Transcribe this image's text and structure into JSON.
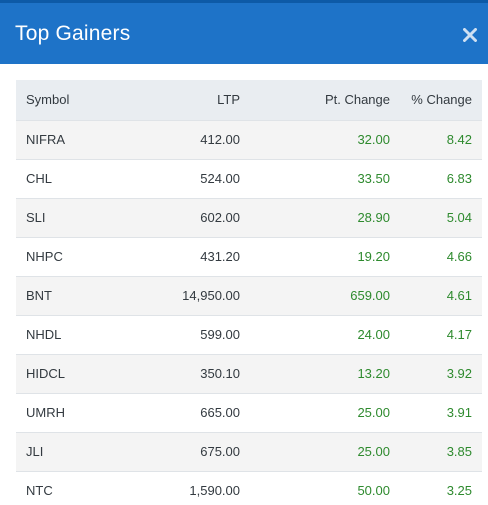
{
  "modal": {
    "title": "Top Gainers",
    "close_icon": "close-icon",
    "header_color": "#1e73c8",
    "positive_color": "#2e8a2e"
  },
  "table": {
    "headers": {
      "symbol": "Symbol",
      "ltp": "LTP",
      "pt_change": "Pt. Change",
      "pct_change": "% Change"
    },
    "rows": [
      {
        "symbol": "NIFRA",
        "ltp": "412.00",
        "pt_change": "32.00",
        "pct_change": "8.42"
      },
      {
        "symbol": "CHL",
        "ltp": "524.00",
        "pt_change": "33.50",
        "pct_change": "6.83"
      },
      {
        "symbol": "SLI",
        "ltp": "602.00",
        "pt_change": "28.90",
        "pct_change": "5.04"
      },
      {
        "symbol": "NHPC",
        "ltp": "431.20",
        "pt_change": "19.20",
        "pct_change": "4.66"
      },
      {
        "symbol": "BNT",
        "ltp": "14,950.00",
        "pt_change": "659.00",
        "pct_change": "4.61"
      },
      {
        "symbol": "NHDL",
        "ltp": "599.00",
        "pt_change": "24.00",
        "pct_change": "4.17"
      },
      {
        "symbol": "HIDCL",
        "ltp": "350.10",
        "pt_change": "13.20",
        "pct_change": "3.92"
      },
      {
        "symbol": "UMRH",
        "ltp": "665.00",
        "pt_change": "25.00",
        "pct_change": "3.91"
      },
      {
        "symbol": "JLI",
        "ltp": "675.00",
        "pt_change": "25.00",
        "pct_change": "3.85"
      },
      {
        "symbol": "NTC",
        "ltp": "1,590.00",
        "pt_change": "50.00",
        "pct_change": "3.25"
      }
    ]
  }
}
